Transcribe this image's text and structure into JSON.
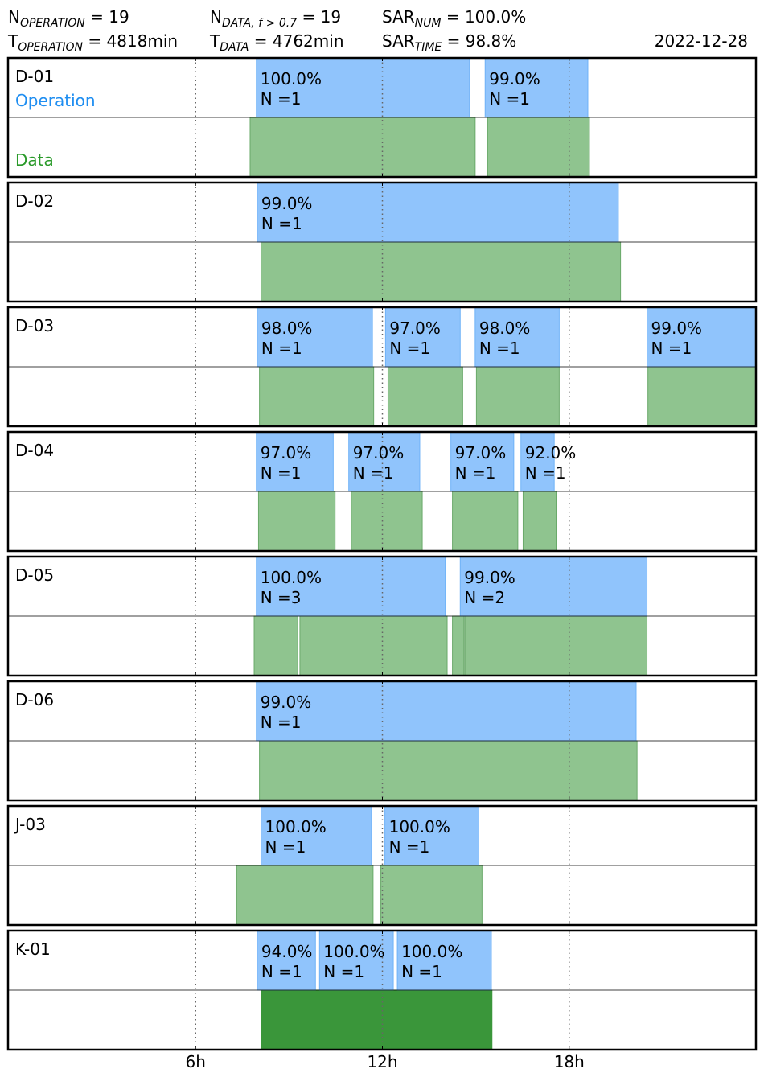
{
  "header": {
    "n_operation_label": "N",
    "n_operation_sub": "OPERATION",
    "n_operation_value": " = 19",
    "n_data_label": "N",
    "n_data_sub": "DATA, f > 0.7",
    "n_data_value": " = 19",
    "sar_num_label": "SAR",
    "sar_num_sub": "NUM",
    "sar_num_value": " = 100.0%",
    "t_operation_label": "T",
    "t_operation_sub": "OPERATION",
    "t_operation_value": " = 4818min",
    "t_data_label": "T",
    "t_data_sub": "DATA",
    "t_data_value": " = 4762min",
    "sar_time_label": "SAR",
    "sar_time_sub": "TIME",
    "sar_time_value": " = 98.8%",
    "date": "2022-12-28"
  },
  "legend": {
    "operation": "Operation",
    "data": "Data"
  },
  "colors": {
    "operation": "#90c4fc",
    "operation_edge": "#6fb2f7",
    "operation_text": "#1f8ef1",
    "data": "#8fc48f",
    "data_edge": "#6aa96a",
    "data_dark": "#3a963a",
    "data_text": "#2a9a2a"
  },
  "chart_data": {
    "type": "timeline",
    "x_unit": "hour",
    "xlim": [
      0,
      24
    ],
    "x_ticks": [
      6,
      12,
      18
    ],
    "x_tick_labels": [
      "6h",
      "12h",
      "18h"
    ],
    "grid": "vertical dotted at ticks",
    "rows": [
      {
        "name": "D-01",
        "operation": [
          {
            "start": 7.95,
            "end": 14.8,
            "pct": "100.0%",
            "n": "N =1"
          },
          {
            "start": 15.3,
            "end": 18.6,
            "pct": "99.0%",
            "n": "N =1"
          }
        ],
        "data": [
          {
            "start": 7.75,
            "end": 14.98
          },
          {
            "start": 15.38,
            "end": 18.65
          }
        ]
      },
      {
        "name": "D-02",
        "operation": [
          {
            "start": 7.98,
            "end": 19.58,
            "pct": "99.0%",
            "n": "N =1"
          }
        ],
        "data": [
          {
            "start": 8.1,
            "end": 19.65
          }
        ]
      },
      {
        "name": "D-03",
        "operation": [
          {
            "start": 7.98,
            "end": 11.68,
            "pct": "98.0%",
            "n": "N =1"
          },
          {
            "start": 12.1,
            "end": 14.5,
            "pct": "97.0%",
            "n": "N =1"
          },
          {
            "start": 14.98,
            "end": 17.68,
            "pct": "98.0%",
            "n": "N =1"
          },
          {
            "start": 20.5,
            "end": 23.95,
            "pct": "99.0%",
            "n": "N =1"
          }
        ],
        "data": [
          {
            "start": 8.05,
            "end": 11.72
          },
          {
            "start": 12.18,
            "end": 14.58
          },
          {
            "start": 15.02,
            "end": 17.68
          },
          {
            "start": 20.53,
            "end": 23.95
          }
        ]
      },
      {
        "name": "D-04",
        "operation": [
          {
            "start": 7.95,
            "end": 10.42,
            "pct": "97.0%",
            "n": "N =1"
          },
          {
            "start": 10.92,
            "end": 13.2,
            "pct": "97.0%",
            "n": "N =1"
          },
          {
            "start": 14.2,
            "end": 16.22,
            "pct": "97.0%",
            "n": "N =1"
          },
          {
            "start": 16.45,
            "end": 17.52,
            "pct": "92.0%",
            "n": "N =1"
          }
        ],
        "data": [
          {
            "start": 8.02,
            "end": 10.48
          },
          {
            "start": 11.0,
            "end": 13.28
          },
          {
            "start": 14.25,
            "end": 16.35
          },
          {
            "start": 16.52,
            "end": 17.58
          }
        ]
      },
      {
        "name": "D-05",
        "operation": [
          {
            "start": 7.95,
            "end": 14.02,
            "pct": "100.0%",
            "n": "N =3"
          },
          {
            "start": 14.5,
            "end": 20.5,
            "pct": "99.0%",
            "n": "N =2"
          }
        ],
        "data": [
          {
            "start": 7.88,
            "end": 9.28
          },
          {
            "start": 9.35,
            "end": 14.08
          },
          {
            "start": 14.25,
            "end": 14.62
          },
          {
            "start": 14.65,
            "end": 20.5
          }
        ]
      },
      {
        "name": "D-06",
        "operation": [
          {
            "start": 7.95,
            "end": 20.15,
            "pct": "99.0%",
            "n": "N =1"
          }
        ],
        "data": [
          {
            "start": 8.05,
            "end": 20.18
          }
        ]
      },
      {
        "name": "J-03",
        "operation": [
          {
            "start": 8.1,
            "end": 11.65,
            "pct": "100.0%",
            "n": "N =1"
          },
          {
            "start": 12.08,
            "end": 15.1,
            "pct": "100.0%",
            "n": "N =1"
          }
        ],
        "data": [
          {
            "start": 7.32,
            "end": 11.7
          },
          {
            "start": 11.95,
            "end": 15.2
          }
        ]
      },
      {
        "name": "K-01",
        "operation": [
          {
            "start": 7.98,
            "end": 9.85,
            "pct": "94.0%",
            "n": "N =1"
          },
          {
            "start": 9.98,
            "end": 12.35,
            "pct": "100.0%",
            "n": "N =1"
          },
          {
            "start": 12.48,
            "end": 15.5,
            "pct": "100.0%",
            "n": "N =1"
          }
        ],
        "data": [
          {
            "start": 8.1,
            "end": 15.52,
            "dark": true
          }
        ]
      }
    ]
  }
}
